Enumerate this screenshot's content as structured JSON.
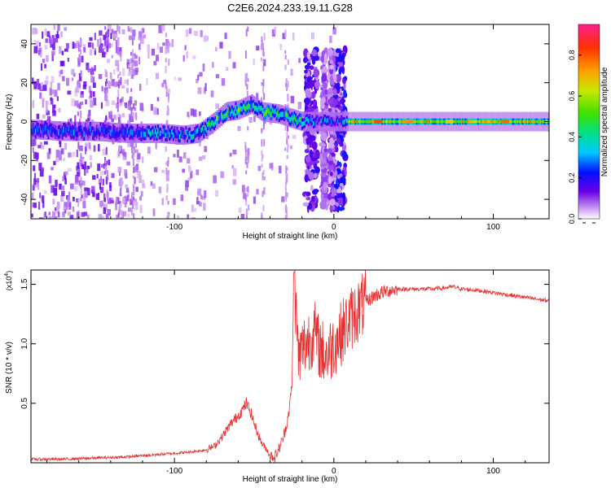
{
  "title": "C2E6.2024.233.19.11.G28",
  "chart_data": [
    {
      "type": "heatmap",
      "xlabel": "Height of straight line (km)",
      "ylabel": "Frequency (Hz)",
      "xlim": [
        -190,
        135
      ],
      "ylim": [
        -50,
        50
      ],
      "xticks": [
        -100,
        0,
        100
      ],
      "yticks": [
        -40,
        -20,
        0,
        20,
        40
      ],
      "colorbar": {
        "label": "Normalized spectral amplitude",
        "range": [
          0,
          0.95
        ],
        "ticks": [
          0.0,
          0.2,
          0.4,
          0.6,
          0.8
        ]
      },
      "ridge": [
        {
          "x": -190,
          "y": -4
        },
        {
          "x": -170,
          "y": -5
        },
        {
          "x": -150,
          "y": -5
        },
        {
          "x": -130,
          "y": -6
        },
        {
          "x": -110,
          "y": -6
        },
        {
          "x": -95,
          "y": -7
        },
        {
          "x": -85,
          "y": -6
        },
        {
          "x": -75,
          "y": 0
        },
        {
          "x": -68,
          "y": 5
        },
        {
          "x": -60,
          "y": 6
        },
        {
          "x": -52,
          "y": 9
        },
        {
          "x": -45,
          "y": 5
        },
        {
          "x": -35,
          "y": 4
        },
        {
          "x": -28,
          "y": 2
        },
        {
          "x": -20,
          "y": 0
        },
        {
          "x": -10,
          "y": 0
        },
        {
          "x": 0,
          "y": 0
        },
        {
          "x": 10,
          "y": 0
        },
        {
          "x": 30,
          "y": 0
        },
        {
          "x": 60,
          "y": 0
        },
        {
          "x": 100,
          "y": 0
        },
        {
          "x": 135,
          "y": 0
        }
      ]
    },
    {
      "type": "line",
      "xlabel": "Height of straight line (km)",
      "ylabel": "SNR (10 * v/v)",
      "y_multiplier": "(x10^4)",
      "xlim": [
        -190,
        135
      ],
      "ylim": [
        0,
        1.62
      ],
      "xticks": [
        -100,
        0,
        100
      ],
      "yticks": [
        0.5,
        1.0,
        1.5
      ],
      "ytick_labels": [
        "0.5",
        "1.0",
        "1.5"
      ],
      "series": [
        {
          "color": "#e8302e",
          "x": [
            -190,
            -170,
            -150,
            -130,
            -120,
            -110,
            -100,
            -90,
            -80,
            -75,
            -70,
            -65,
            -60,
            -57,
            -55,
            -52,
            -50,
            -47,
            -45,
            -42,
            -40,
            -37,
            -35,
            -32,
            -30,
            -28,
            -26,
            -25,
            -22,
            -20,
            -18,
            -15,
            -12,
            -10,
            -8,
            -5,
            -2,
            0,
            3,
            6,
            10,
            15,
            20,
            25,
            30,
            35,
            40,
            50,
            60,
            70,
            75,
            80,
            90,
            100,
            110,
            120,
            130,
            135
          ],
          "y": [
            0.03,
            0.03,
            0.04,
            0.05,
            0.06,
            0.07,
            0.08,
            0.09,
            0.11,
            0.14,
            0.22,
            0.32,
            0.4,
            0.45,
            0.5,
            0.42,
            0.33,
            0.22,
            0.16,
            0.11,
            0.06,
            0.05,
            0.1,
            0.2,
            0.3,
            0.45,
            0.7,
            1.6,
            0.85,
            0.95,
            1.0,
            1.05,
            1.1,
            1.0,
            0.95,
            0.9,
            0.95,
            1.0,
            1.05,
            1.12,
            1.2,
            1.28,
            1.35,
            1.4,
            1.43,
            1.45,
            1.46,
            1.46,
            1.46,
            1.47,
            1.48,
            1.46,
            1.45,
            1.43,
            1.41,
            1.39,
            1.37,
            1.36
          ]
        }
      ]
    }
  ]
}
